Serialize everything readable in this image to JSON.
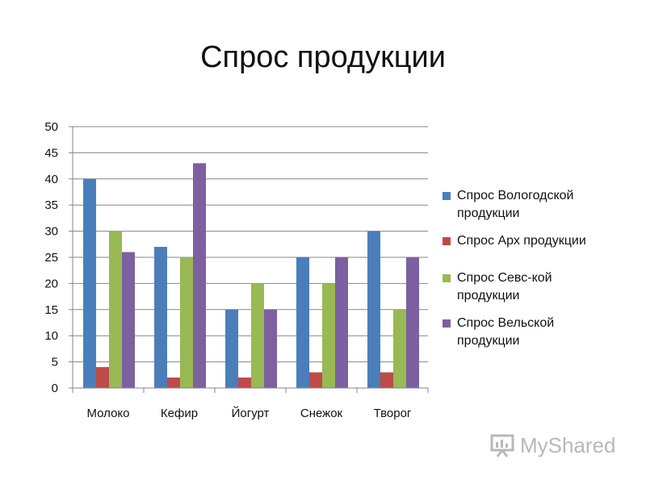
{
  "chart_data": {
    "type": "bar",
    "title": "Спрос продукции",
    "categories": [
      "Молоко",
      "Кефир",
      "Йогурт",
      "Снежок",
      "Творог"
    ],
    "ylim": [
      0,
      50
    ],
    "yticks": [
      0,
      5,
      10,
      15,
      20,
      25,
      30,
      35,
      40,
      45,
      50
    ],
    "grid": true,
    "legend_position": "right",
    "series": [
      {
        "name": "Спрос Вологодской продукции",
        "color": "#4A7EBB",
        "values": [
          40,
          27,
          15,
          25,
          30
        ]
      },
      {
        "name": "Спрос Арх продукции",
        "color": "#BE4B48",
        "values": [
          4,
          2,
          2,
          3,
          3
        ]
      },
      {
        "name": "Спрос Севс-кой продукции",
        "color": "#98B954",
        "values": [
          30,
          25,
          20,
          20,
          15
        ]
      },
      {
        "name": "Спрос Вельской продукции",
        "color": "#7D60A0",
        "values": [
          26,
          43,
          15,
          25,
          25
        ]
      }
    ]
  },
  "legend_lines": [
    [
      "Спрос Вологодской",
      "продукции"
    ],
    [
      "Спрос Арх продукции"
    ],
    [
      "Спрос Севс-кой",
      "продукции"
    ],
    [
      "Спрос Вельской",
      "продукции"
    ]
  ],
  "watermark": {
    "text": "MyShared",
    "icon": "presentation-board-icon"
  }
}
